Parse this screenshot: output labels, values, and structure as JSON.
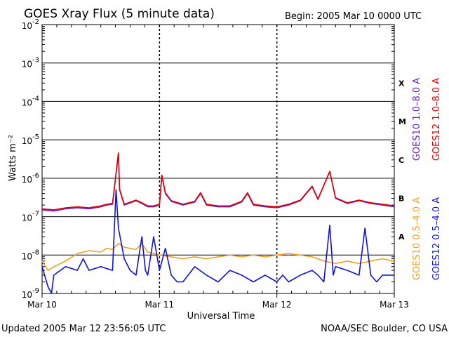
{
  "header": {
    "title": "GOES Xray Flux (5 minute data)",
    "begin": "Begin:  2005 Mar 10 0000 UTC"
  },
  "footer": {
    "updated": "Updated 2005 Mar 12 23:56:05 UTC",
    "credit": "NOAA/SEC Boulder, CO USA"
  },
  "chart_data": {
    "type": "line",
    "title": "GOES Xray Flux (5 minute data)",
    "xlabel": "Universal Time",
    "ylabel": "Watts m⁻²",
    "yscale": "log",
    "ylim": [
      1e-09,
      0.01
    ],
    "xlim": [
      0,
      3
    ],
    "grid": true,
    "x_ticks": [
      {
        "x": 0,
        "label": "Mar 10"
      },
      {
        "x": 1,
        "label": "Mar 11"
      },
      {
        "x": 2,
        "label": "Mar 12"
      },
      {
        "x": 3,
        "label": "Mar 13"
      }
    ],
    "y_tick_labels": [
      {
        "exp": -9,
        "base": "10",
        "sup": "-9"
      },
      {
        "exp": -8,
        "base": "10",
        "sup": "-8"
      },
      {
        "exp": -7,
        "base": "10",
        "sup": "-7"
      },
      {
        "exp": -6,
        "base": "10",
        "sup": "-6"
      },
      {
        "exp": -5,
        "base": "10",
        "sup": "-5"
      },
      {
        "exp": -4,
        "base": "10",
        "sup": "-4"
      },
      {
        "exp": -3,
        "base": "10",
        "sup": "-3"
      },
      {
        "exp": -2,
        "base": "10",
        "sup": "-2"
      }
    ],
    "flare_classes": [
      {
        "label": "A",
        "y": 3e-08
      },
      {
        "label": "B",
        "y": 3e-07
      },
      {
        "label": "C",
        "y": 3e-06
      },
      {
        "label": "M",
        "y": 3e-05
      },
      {
        "label": "X",
        "y": 0.0003
      }
    ],
    "series": [
      {
        "name": "GOES10 1.0–8.0 A",
        "color": "#6a1fc6",
        "points": [
          [
            0,
            1.5e-07
          ],
          [
            0.1,
            1.4e-07
          ],
          [
            0.2,
            1.6e-07
          ],
          [
            0.3,
            1.7e-07
          ],
          [
            0.4,
            1.6e-07
          ],
          [
            0.5,
            1.8e-07
          ],
          [
            0.55,
            2e-07
          ],
          [
            0.6,
            2.1e-07
          ],
          [
            0.65,
            4.5e-06
          ],
          [
            0.66,
            5e-07
          ],
          [
            0.7,
            2e-07
          ],
          [
            0.8,
            2.6e-07
          ],
          [
            0.85,
            2.2e-07
          ],
          [
            0.9,
            1.8e-07
          ],
          [
            0.95,
            1.8e-07
          ],
          [
            1.0,
            2e-07
          ],
          [
            1.02,
            1.2e-06
          ],
          [
            1.05,
            4e-07
          ],
          [
            1.1,
            2.5e-07
          ],
          [
            1.2,
            2e-07
          ],
          [
            1.3,
            2.4e-07
          ],
          [
            1.35,
            4e-07
          ],
          [
            1.4,
            2e-07
          ],
          [
            1.5,
            1.8e-07
          ],
          [
            1.6,
            1.8e-07
          ],
          [
            1.7,
            2.4e-07
          ],
          [
            1.75,
            4e-07
          ],
          [
            1.8,
            2e-07
          ],
          [
            1.9,
            1.8e-07
          ],
          [
            2.0,
            1.7e-07
          ],
          [
            2.1,
            2e-07
          ],
          [
            2.2,
            2.6e-07
          ],
          [
            2.3,
            6e-07
          ],
          [
            2.35,
            2.8e-07
          ],
          [
            2.45,
            1.5e-06
          ],
          [
            2.5,
            3e-07
          ],
          [
            2.6,
            2.2e-07
          ],
          [
            2.7,
            2.6e-07
          ],
          [
            2.8,
            2.2e-07
          ],
          [
            2.9,
            2e-07
          ],
          [
            3.0,
            1.8e-07
          ]
        ]
      },
      {
        "name": "GOES12 1.0–8.0 A",
        "color": "#e00000",
        "points": [
          [
            0,
            1.6e-07
          ],
          [
            0.1,
            1.5e-07
          ],
          [
            0.2,
            1.7e-07
          ],
          [
            0.3,
            1.8e-07
          ],
          [
            0.4,
            1.7e-07
          ],
          [
            0.5,
            1.9e-07
          ],
          [
            0.55,
            2.1e-07
          ],
          [
            0.6,
            2.2e-07
          ],
          [
            0.65,
            4.5e-06
          ],
          [
            0.66,
            5.2e-07
          ],
          [
            0.7,
            2.1e-07
          ],
          [
            0.8,
            2.7e-07
          ],
          [
            0.85,
            2.3e-07
          ],
          [
            0.9,
            1.9e-07
          ],
          [
            0.95,
            1.9e-07
          ],
          [
            1.0,
            2.1e-07
          ],
          [
            1.02,
            1.2e-06
          ],
          [
            1.05,
            4.2e-07
          ],
          [
            1.1,
            2.6e-07
          ],
          [
            1.2,
            2.1e-07
          ],
          [
            1.3,
            2.5e-07
          ],
          [
            1.35,
            4.2e-07
          ],
          [
            1.4,
            2.1e-07
          ],
          [
            1.5,
            1.9e-07
          ],
          [
            1.6,
            1.9e-07
          ],
          [
            1.7,
            2.5e-07
          ],
          [
            1.75,
            4.2e-07
          ],
          [
            1.8,
            2.1e-07
          ],
          [
            1.9,
            1.9e-07
          ],
          [
            2.0,
            1.8e-07
          ],
          [
            2.1,
            2.1e-07
          ],
          [
            2.2,
            2.7e-07
          ],
          [
            2.3,
            6.2e-07
          ],
          [
            2.35,
            2.9e-07
          ],
          [
            2.45,
            1.5e-06
          ],
          [
            2.5,
            3.1e-07
          ],
          [
            2.6,
            2.3e-07
          ],
          [
            2.7,
            2.7e-07
          ],
          [
            2.8,
            2.3e-07
          ],
          [
            2.9,
            2.1e-07
          ],
          [
            3.0,
            1.9e-07
          ]
        ]
      },
      {
        "name": "GOES10 0.5–4.0 A",
        "color": "#f0a020",
        "points": [
          [
            0,
            7e-09
          ],
          [
            0.05,
            4e-09
          ],
          [
            0.1,
            5e-09
          ],
          [
            0.2,
            7e-09
          ],
          [
            0.3,
            1.1e-08
          ],
          [
            0.4,
            1.3e-08
          ],
          [
            0.5,
            1.2e-08
          ],
          [
            0.55,
            1.5e-08
          ],
          [
            0.6,
            1.4e-08
          ],
          [
            0.65,
            2e-08
          ],
          [
            0.7,
            1.6e-08
          ],
          [
            0.8,
            1.4e-08
          ],
          [
            0.85,
            2e-08
          ],
          [
            0.9,
            1.2e-08
          ],
          [
            0.95,
            1.1e-08
          ],
          [
            1.0,
            1e-08
          ],
          [
            1.1,
            9e-09
          ],
          [
            1.2,
            8e-09
          ],
          [
            1.3,
            9e-09
          ],
          [
            1.4,
            8e-09
          ],
          [
            1.5,
            9e-09
          ],
          [
            1.6,
            1e-08
          ],
          [
            1.7,
            9e-09
          ],
          [
            1.8,
            1e-08
          ],
          [
            1.9,
            9e-09
          ],
          [
            2.0,
            1e-08
          ],
          [
            2.1,
            1.1e-08
          ],
          [
            2.2,
            1e-08
          ],
          [
            2.3,
            9e-09
          ],
          [
            2.4,
            7e-09
          ],
          [
            2.5,
            6e-09
          ],
          [
            2.6,
            7e-09
          ],
          [
            2.7,
            6e-09
          ],
          [
            2.8,
            7e-09
          ],
          [
            2.9,
            8e-09
          ],
          [
            3.0,
            7e-09
          ]
        ]
      },
      {
        "name": "GOES12 0.5–4.0 A",
        "color": "#1010e0",
        "points": [
          [
            0,
            5e-09
          ],
          [
            0.05,
            1.5e-09
          ],
          [
            0.08,
            1e-09
          ],
          [
            0.1,
            3e-09
          ],
          [
            0.2,
            5e-09
          ],
          [
            0.3,
            4e-09
          ],
          [
            0.35,
            8e-09
          ],
          [
            0.4,
            4e-09
          ],
          [
            0.5,
            5e-09
          ],
          [
            0.6,
            4e-09
          ],
          [
            0.63,
            5e-07
          ],
          [
            0.65,
            5e-08
          ],
          [
            0.7,
            8e-09
          ],
          [
            0.75,
            4e-09
          ],
          [
            0.8,
            3e-09
          ],
          [
            0.85,
            3e-08
          ],
          [
            0.88,
            4e-09
          ],
          [
            0.9,
            3e-09
          ],
          [
            0.95,
            3e-08
          ],
          [
            1.0,
            4e-09
          ],
          [
            1.05,
            1.5e-08
          ],
          [
            1.1,
            3e-09
          ],
          [
            1.15,
            2e-09
          ],
          [
            1.2,
            2e-09
          ],
          [
            1.3,
            5e-09
          ],
          [
            1.4,
            3e-09
          ],
          [
            1.5,
            2e-09
          ],
          [
            1.6,
            4e-09
          ],
          [
            1.7,
            3e-09
          ],
          [
            1.8,
            2e-09
          ],
          [
            1.9,
            3e-09
          ],
          [
            2.0,
            2e-09
          ],
          [
            2.05,
            3e-09
          ],
          [
            2.1,
            2e-09
          ],
          [
            2.2,
            3e-09
          ],
          [
            2.3,
            4e-09
          ],
          [
            2.35,
            3e-09
          ],
          [
            2.4,
            2e-09
          ],
          [
            2.45,
            6e-08
          ],
          [
            2.48,
            3e-09
          ],
          [
            2.5,
            5e-09
          ],
          [
            2.6,
            4e-09
          ],
          [
            2.7,
            3e-09
          ],
          [
            2.75,
            5e-08
          ],
          [
            2.8,
            3e-09
          ],
          [
            2.85,
            2e-09
          ],
          [
            2.9,
            3e-09
          ],
          [
            3.0,
            3e-09
          ]
        ]
      }
    ]
  }
}
